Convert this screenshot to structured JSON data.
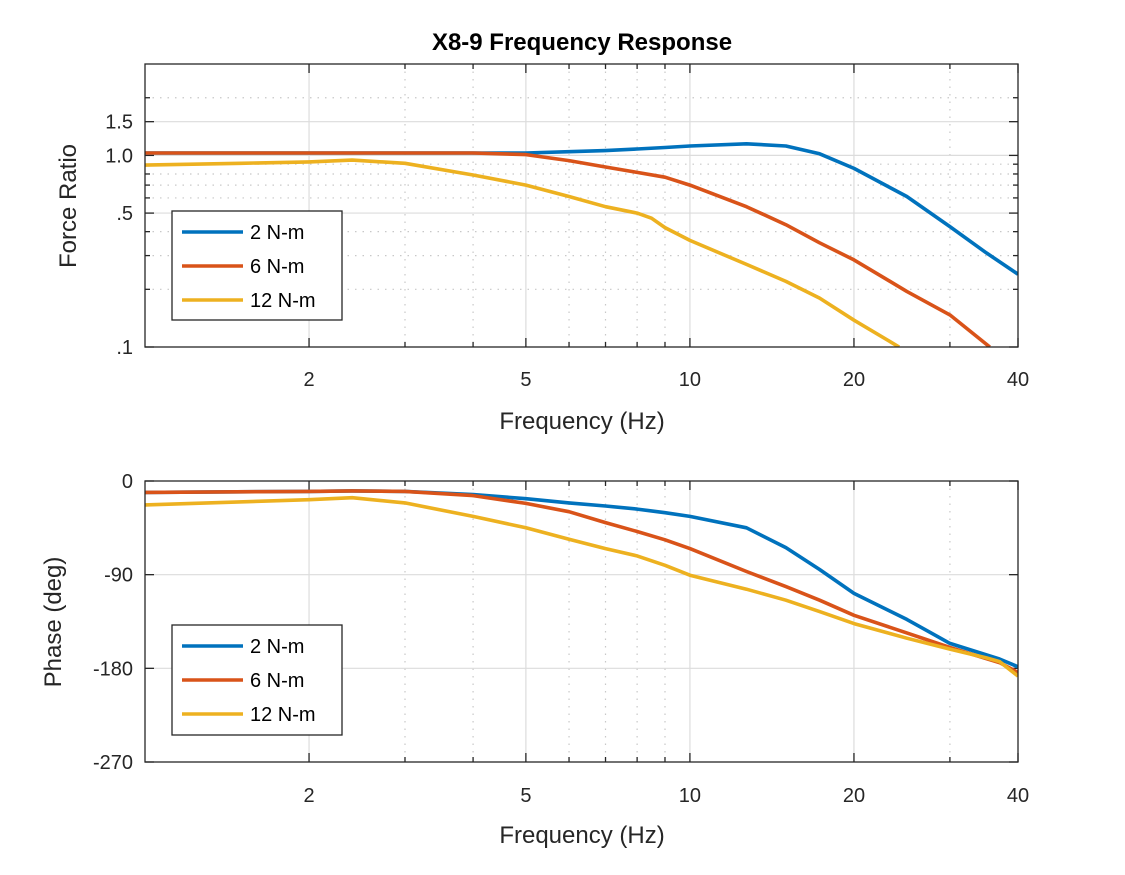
{
  "chart_data": [
    {
      "type": "line",
      "title": "X8-9 Frequency Response",
      "xlabel": "Frequency (Hz)",
      "ylabel": "Force Ratio",
      "xscale": "log",
      "yscale": "log",
      "xlim": [
        1,
        40
      ],
      "ylim": [
        0.1,
        3
      ],
      "xticks": [
        2,
        5,
        10,
        20,
        40
      ],
      "xtick_labels": [
        "2",
        "5",
        "10",
        "20",
        "40"
      ],
      "xminor": [
        3,
        4,
        6,
        7,
        8,
        9,
        30
      ],
      "yticks": [
        0.1,
        0.5,
        1.0,
        1.5
      ],
      "ytick_labels": [
        ".1",
        ".5",
        "1.0",
        "1.5"
      ],
      "yminor": [
        0.2,
        0.3,
        0.4,
        0.6,
        0.7,
        0.8,
        0.9,
        2
      ],
      "grid": true,
      "legend_position": "lower-left",
      "series": [
        {
          "name": "2 N-m",
          "color": "#0072BD",
          "x": [
            1,
            2,
            3,
            4,
            5,
            6,
            7,
            8,
            9,
            10,
            12.7,
            15,
            17.3,
            20,
            25,
            30,
            35,
            40
          ],
          "y": [
            1.03,
            1.03,
            1.03,
            1.03,
            1.03,
            1.045,
            1.06,
            1.08,
            1.1,
            1.12,
            1.15,
            1.12,
            1.02,
            0.855,
            0.61,
            0.425,
            0.31,
            0.24
          ]
        },
        {
          "name": "6 N-m",
          "color": "#D95319",
          "x": [
            1,
            2,
            3,
            4,
            5,
            6,
            7,
            8,
            9,
            10,
            12.7,
            15,
            17.3,
            20,
            25,
            30,
            35.5
          ],
          "y": [
            1.03,
            1.03,
            1.03,
            1.03,
            1.01,
            0.94,
            0.87,
            0.815,
            0.77,
            0.7,
            0.54,
            0.435,
            0.35,
            0.285,
            0.195,
            0.147,
            0.1
          ]
        },
        {
          "name": "12 N-m",
          "color": "#EDB120",
          "x": [
            1,
            1.5,
            2,
            2.4,
            3,
            4,
            5,
            6,
            7,
            8,
            8.5,
            9,
            10,
            12.7,
            15,
            17.3,
            20,
            24.2
          ],
          "y": [
            0.89,
            0.91,
            0.925,
            0.945,
            0.91,
            0.79,
            0.7,
            0.61,
            0.54,
            0.5,
            0.47,
            0.42,
            0.36,
            0.27,
            0.22,
            0.18,
            0.138,
            0.1
          ]
        }
      ]
    },
    {
      "type": "line",
      "title": "",
      "xlabel": "Frequency (Hz)",
      "ylabel": "Phase (deg)",
      "xscale": "log",
      "yscale": "linear",
      "xlim": [
        1,
        40
      ],
      "ylim": [
        -270,
        0
      ],
      "xticks": [
        2,
        5,
        10,
        20,
        40
      ],
      "xtick_labels": [
        "2",
        "5",
        "10",
        "20",
        "40"
      ],
      "xminor": [
        3,
        4,
        6,
        7,
        8,
        9,
        30
      ],
      "yticks": [
        0,
        -90,
        -180,
        -270
      ],
      "ytick_labels": [
        "0",
        "-90",
        "-180",
        "-270"
      ],
      "yminor": [],
      "grid": true,
      "legend_position": "lower-left",
      "series": [
        {
          "name": "2 N-m",
          "color": "#0072BD",
          "x": [
            1,
            2,
            2.4,
            3,
            4,
            5,
            6,
            7,
            8,
            9,
            10,
            12.7,
            15,
            17.3,
            20,
            25,
            30,
            37,
            40
          ],
          "y": [
            -11,
            -10,
            -9.5,
            -10,
            -13,
            -17,
            -21,
            -24,
            -27,
            -30.5,
            -34,
            -45,
            -64,
            -85,
            -108,
            -133,
            -156,
            -171,
            -178.5
          ]
        },
        {
          "name": "6 N-m",
          "color": "#D95319",
          "x": [
            1,
            2,
            2.4,
            3,
            4,
            5,
            6,
            7,
            8,
            9,
            10,
            12.7,
            15,
            17.3,
            20,
            25,
            30,
            37,
            40
          ],
          "y": [
            -11,
            -10,
            -9.5,
            -10,
            -14,
            -21.5,
            -29.5,
            -40,
            -48.5,
            -56.5,
            -65,
            -87,
            -101.5,
            -114.5,
            -129,
            -146,
            -160,
            -174.5,
            -184
          ]
        },
        {
          "name": "12 N-m",
          "color": "#EDB120",
          "x": [
            1,
            2,
            2.4,
            3,
            4,
            5,
            6,
            7,
            8,
            9,
            10,
            12.7,
            15,
            17.3,
            20,
            25,
            30,
            35,
            37,
            40
          ],
          "y": [
            -23,
            -18,
            -16,
            -21,
            -34,
            -45,
            -56,
            -65,
            -72,
            -81,
            -90.5,
            -104,
            -114.5,
            -125.5,
            -137,
            -151,
            -161.5,
            -170,
            -173.5,
            -187.5
          ]
        }
      ]
    }
  ]
}
